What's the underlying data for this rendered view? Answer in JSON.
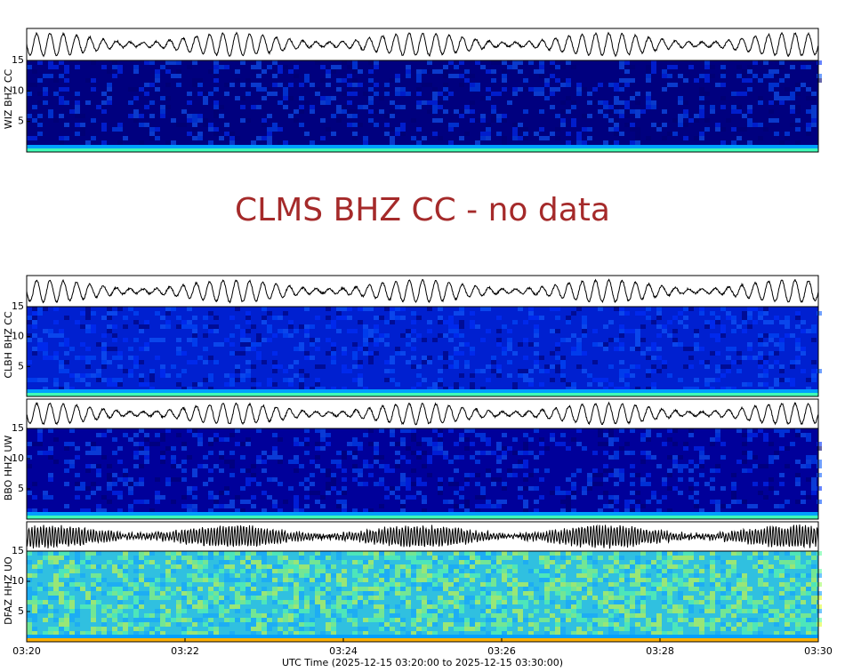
{
  "chart_data": [
    {
      "type": "spectrogram",
      "ylabel": "WIZ BHZ CC",
      "ylim": [
        0,
        15
      ],
      "yticks": [
        5,
        10,
        15
      ],
      "color": "#00007f",
      "band_color": "#40ffb7"
    },
    {
      "type": "message",
      "title": "CLMS BHZ CC - no data",
      "color": "#a52a2a"
    },
    {
      "type": "spectrogram",
      "ylabel": "CLBH BHZ CC",
      "ylim": [
        0,
        15
      ],
      "yticks": [
        5,
        10,
        15
      ],
      "color": "#0020d0",
      "band_color": "#40ffb7"
    },
    {
      "type": "spectrogram",
      "ylabel": "BBO HHZ UW",
      "ylim": [
        0,
        15
      ],
      "yticks": [
        5,
        10,
        15
      ],
      "color": "#00009a",
      "band_color": "#40ffb7"
    },
    {
      "type": "spectrogram",
      "ylabel": "DFAZ HHZ UO",
      "ylim": [
        0,
        15
      ],
      "yticks": [
        5,
        10,
        15
      ],
      "color": "#30c0e0",
      "band_color": "#ffb000",
      "xticks": [
        "03:20",
        "03:22",
        "03:24",
        "03:26",
        "03:28",
        "03:30"
      ],
      "xlabel": "UTC Time (2025-12-15 03:20:00 to 2025-12-15 03:30:00)"
    }
  ]
}
